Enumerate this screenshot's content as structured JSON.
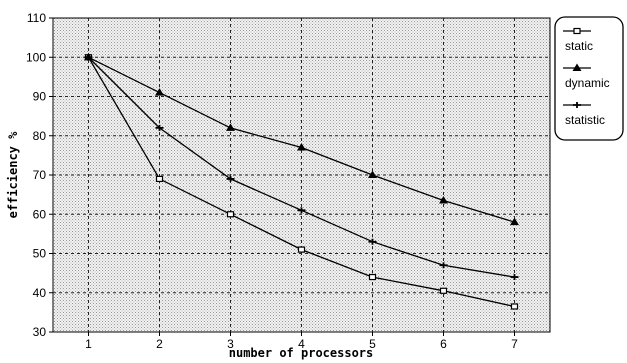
{
  "chart_data": {
    "type": "line",
    "title": "",
    "xlabel": "number of processors",
    "ylabel": "efficiency %",
    "x": [
      1,
      2,
      3,
      4,
      5,
      6,
      7
    ],
    "xlim": [
      0.5,
      7.5
    ],
    "ylim": [
      30,
      110
    ],
    "xticks": [
      "1",
      "2",
      "3",
      "4",
      "5",
      "6",
      "7"
    ],
    "yticks": [
      "30",
      "40",
      "50",
      "60",
      "70",
      "80",
      "90",
      "100",
      "110"
    ],
    "grid": true,
    "legend_position": "right",
    "series": [
      {
        "name": "static",
        "marker": "square",
        "values": [
          100,
          69,
          60,
          51,
          44,
          40.5,
          36.5
        ]
      },
      {
        "name": "dynamic",
        "marker": "triangle",
        "values": [
          100,
          91,
          82,
          77,
          70,
          63.5,
          58
        ]
      },
      {
        "name": "statistic",
        "marker": "cross",
        "values": [
          100,
          82,
          69,
          61,
          53,
          47,
          44
        ]
      }
    ]
  }
}
